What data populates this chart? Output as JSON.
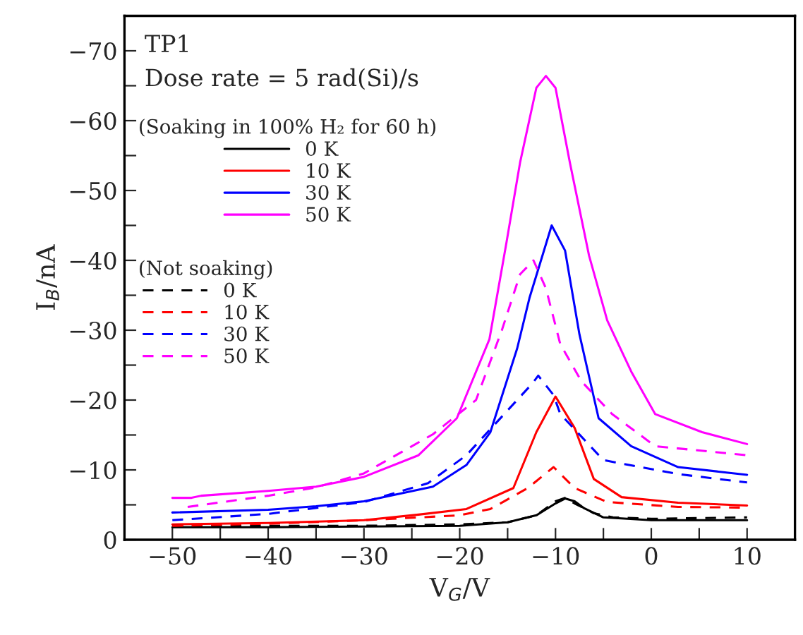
{
  "chart_data": {
    "type": "line",
    "xlabel": "V$_{G}$/V",
    "ylabel": "I$_{B}$/nA",
    "legend_title": "(Soaking in 100% H₂ for 60 h)",
    "annotations": [
      "TP1",
      "Dose rate = 5 rad(Si)/s",
      "(Not soaking)"
    ],
    "xlim": [
      -55,
      15
    ],
    "ylim": [
      0,
      -75
    ],
    "xticks": [
      {
        "value": -50,
        "label": "−50"
      },
      {
        "value": -45,
        "label": null
      },
      {
        "value": -40,
        "label": "−40"
      },
      {
        "value": -35,
        "label": null
      },
      {
        "value": -30,
        "label": "−30"
      },
      {
        "value": -25,
        "label": null
      },
      {
        "value": -20,
        "label": "−20"
      },
      {
        "value": -15,
        "label": null
      },
      {
        "value": -10,
        "label": "−10"
      },
      {
        "value": -5,
        "label": null
      },
      {
        "value": 0,
        "label": "0"
      },
      {
        "value": 5,
        "label": null
      },
      {
        "value": 10,
        "label": "10"
      }
    ],
    "yticks": [
      {
        "value": 0,
        "label": "0"
      },
      {
        "value": -5,
        "label": null
      },
      {
        "value": -10,
        "label": "−10"
      },
      {
        "value": -15,
        "label": null
      },
      {
        "value": -20,
        "label": "−20"
      },
      {
        "value": -25,
        "label": null
      },
      {
        "value": -30,
        "label": "−30"
      },
      {
        "value": -35,
        "label": null
      },
      {
        "value": -40,
        "label": "−40"
      },
      {
        "value": -45,
        "label": null
      },
      {
        "value": -50,
        "label": "−50"
      },
      {
        "value": -55,
        "label": null
      },
      {
        "value": -60,
        "label": "−60"
      },
      {
        "value": -65,
        "label": null
      },
      {
        "value": -70,
        "label": "−70"
      }
    ],
    "grid": false,
    "legend": "top left",
    "marker": "none",
    "series": [
      {
        "name": "0 K",
        "color": "#000000",
        "line_style": "solid",
        "x": [
          -50,
          -40,
          -30,
          -20,
          -15,
          -12,
          -10,
          -9,
          -8,
          -7,
          -5,
          0,
          10
        ],
        "values": [
          -1.8,
          -1.8,
          -1.9,
          -2.0,
          -2.5,
          -3.5,
          -5.2,
          -5.9,
          -5.5,
          -4.5,
          -3.2,
          -2.8,
          -2.8
        ]
      },
      {
        "name": "10 K",
        "color": "#ff0000",
        "line_style": "solid",
        "x": [
          -50,
          -40,
          -30,
          -24.3,
          -19.3,
          -14.4,
          -12,
          -10,
          -8,
          -6,
          -3.1,
          2.8,
          10
        ],
        "values": [
          -2.2,
          -2.4,
          -2.8,
          -3.6,
          -4.4,
          -7.4,
          -15.4,
          -20.5,
          -16,
          -8.7,
          -6.1,
          -5.3,
          -4.9
        ]
      },
      {
        "name": "30 K",
        "color": "#0000ff",
        "line_style": "solid",
        "x": [
          -50,
          -40,
          -35,
          -30,
          -22.8,
          -19.3,
          -16.8,
          -14,
          -12.7,
          -10.4,
          -9,
          -7.5,
          -5.5,
          -2.1,
          2.8,
          10
        ],
        "values": [
          -3.9,
          -4.3,
          -4.8,
          -5.5,
          -7.6,
          -10.7,
          -15.4,
          -27.4,
          -34.7,
          -45,
          -41.4,
          -29.4,
          -17.4,
          -13.4,
          -10.4,
          -9.3
        ]
      },
      {
        "name": "50 K",
        "color": "#ff00ff",
        "line_style": "solid",
        "x": [
          -50,
          -48,
          -47,
          -40,
          -35,
          -30,
          -24.3,
          -20.3,
          -16.9,
          -15.1,
          -13.7,
          -12,
          -11,
          -10,
          -8.5,
          -6.5,
          -4.6,
          -2.1,
          0.4,
          5.3,
          10
        ],
        "values": [
          -6.0,
          -6.0,
          -6.3,
          -7.0,
          -7.6,
          -9.0,
          -12.1,
          -17.4,
          -28.7,
          -42.7,
          -54,
          -64.7,
          -66.4,
          -64.7,
          -54,
          -40.7,
          -31.4,
          -24.1,
          -18,
          -15.4,
          -13.7
        ]
      },
      {
        "name": "0 K",
        "color": "#000000",
        "line_style": "dashed",
        "x": [
          -50,
          -30,
          -20,
          -15,
          -12,
          -10,
          -9,
          -8,
          -6,
          -4,
          0,
          10
        ],
        "values": [
          -2.0,
          -2.0,
          -2.2,
          -2.5,
          -3.5,
          -5.5,
          -6.0,
          -5.2,
          -3.8,
          -3.2,
          -3.0,
          -3.2
        ]
      },
      {
        "name": "10 K",
        "color": "#ff0000",
        "line_style": "dashed",
        "x": [
          -50,
          -40,
          -30,
          -20,
          -16.8,
          -12.9,
          -10.2,
          -8,
          -4.6,
          2.8,
          10
        ],
        "values": [
          -2.0,
          -2.3,
          -2.8,
          -3.5,
          -4.4,
          -7.4,
          -10.4,
          -7.4,
          -5.4,
          -4.7,
          -4.6
        ]
      },
      {
        "name": "30 K",
        "color": "#0000ff",
        "line_style": "dashed",
        "x": [
          -50,
          -40,
          -30,
          -23.3,
          -19.3,
          -12.4,
          -11.8,
          -10.2,
          -9.5,
          -5,
          2.8,
          10
        ],
        "values": [
          -2.8,
          -3.7,
          -5.4,
          -8.1,
          -12.1,
          -22.4,
          -23.5,
          -20.7,
          -18,
          -11.4,
          -9.4,
          -8.2
        ]
      },
      {
        "name": "50 K",
        "color": "#ff00ff",
        "line_style": "dashed",
        "x": [
          -48.4,
          -40,
          -35,
          -30,
          -22.8,
          -18.3,
          -15.6,
          -13.7,
          -12.3,
          -11,
          -9.5,
          -7.3,
          -4.1,
          0.4,
          10
        ],
        "values": [
          -4.7,
          -6.3,
          -7.5,
          -9.5,
          -15.1,
          -20,
          -30,
          -38,
          -40,
          -36,
          -28,
          -22.7,
          -18,
          -13.4,
          -12.1
        ]
      }
    ]
  }
}
